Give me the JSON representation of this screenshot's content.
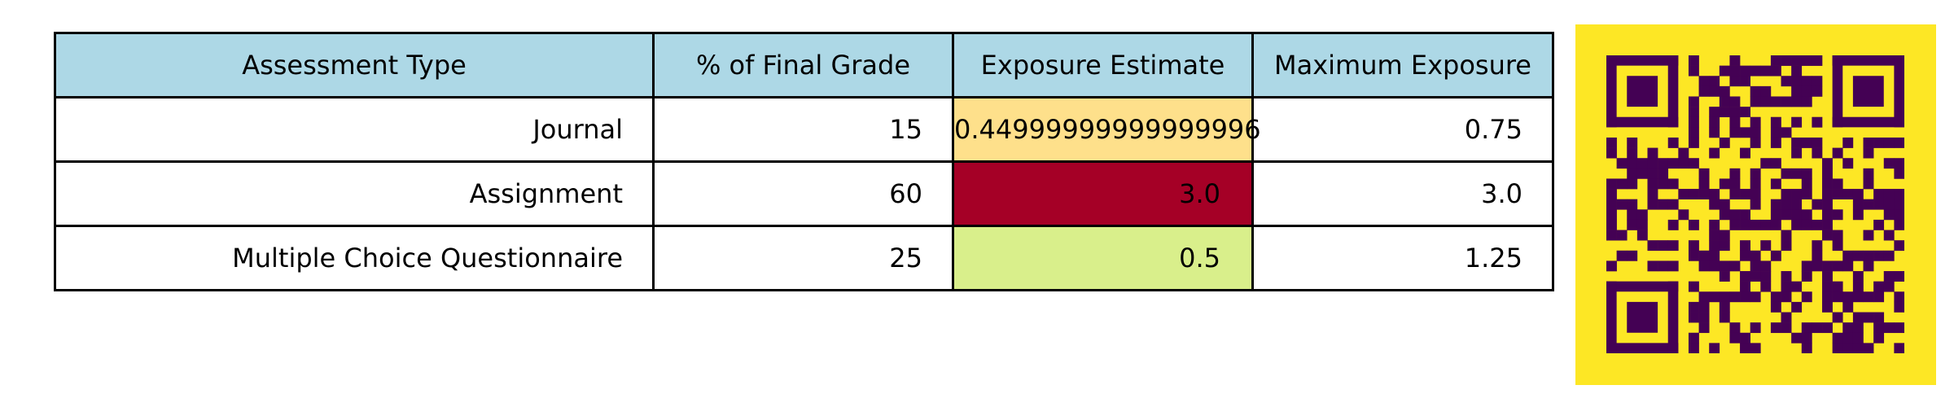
{
  "table": {
    "headers": [
      "Assessment Type",
      "% of Final Grade",
      "Exposure Estimate",
      "Maximum Exposure"
    ],
    "rows": [
      {
        "assessment_type": "Journal",
        "percent_of_final_grade": "15",
        "exposure_estimate": "0.44999999999999996",
        "maximum_exposure": "0.75",
        "exposure_color": "#fee08b"
      },
      {
        "assessment_type": "Assignment",
        "percent_of_final_grade": "60",
        "exposure_estimate": "3.0",
        "maximum_exposure": "3.0",
        "exposure_color": "#a50026"
      },
      {
        "assessment_type": "Multiple Choice Questionnaire",
        "percent_of_final_grade": "25",
        "exposure_estimate": "0.5",
        "maximum_exposure": "1.25",
        "exposure_color": "#d9ef8b"
      }
    ],
    "header_color": "#add8e6"
  },
  "qr_code": {
    "icon": "qr-code-icon",
    "background_color": "#fde725",
    "module_color": "#440154"
  }
}
